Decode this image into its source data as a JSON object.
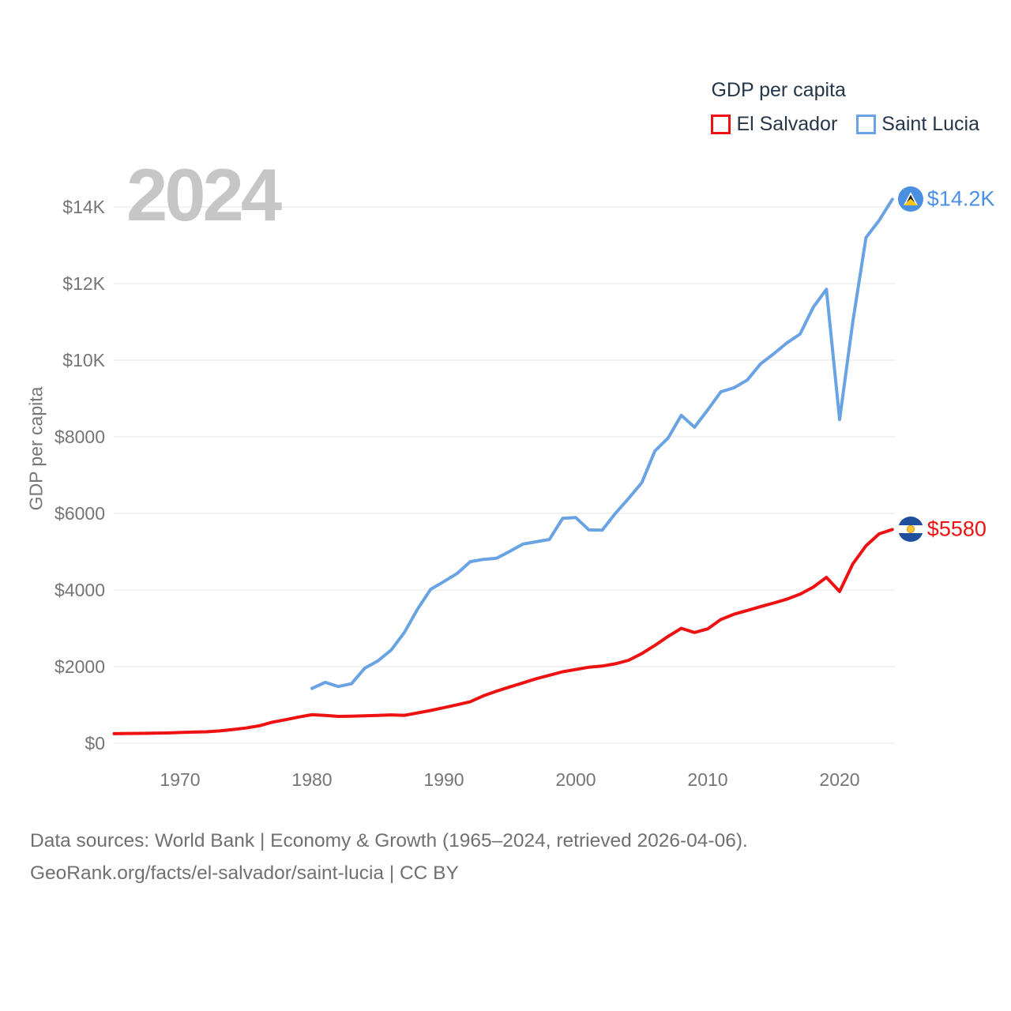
{
  "watermark_year": "2024",
  "legend": {
    "title": "GDP per capita",
    "items": [
      {
        "id": "el-salvador",
        "label": "El Salvador",
        "color": "#ee1111"
      },
      {
        "id": "saint-lucia",
        "label": "Saint Lucia",
        "color": "#69a3e3"
      }
    ]
  },
  "footer": {
    "line1": "Data sources: World Bank | Economy & Growth (1965–2024, retrieved 2026-04-06).",
    "line2": "GeoRank.org/facts/el-salvador/saint-lucia | CC BY"
  },
  "colors": {
    "el_salvador_line": "#ee1111",
    "saint_lucia_line": "#69a3e3",
    "el_salvador_end_label": "#ee1111",
    "saint_lucia_end_label": "#4a90e2",
    "gridline": "#ededed",
    "tick_text": "#757575",
    "legend_text": "#263649",
    "watermark": "#c6c6c6"
  },
  "chart_data": {
    "type": "line",
    "title": "GDP per capita",
    "xlabel": "",
    "ylabel": "GDP per capita",
    "xlim": [
      1965,
      2024
    ],
    "ylim": [
      0,
      14500
    ],
    "grid": "horizontal",
    "legend_position": "top-right",
    "x_ticks": [
      {
        "label": "1970",
        "value": 1970
      },
      {
        "label": "1980",
        "value": 1980
      },
      {
        "label": "1990",
        "value": 1990
      },
      {
        "label": "2000",
        "value": 2000
      },
      {
        "label": "2010",
        "value": 2010
      },
      {
        "label": "2020",
        "value": 2020
      }
    ],
    "y_ticks": [
      {
        "label": "$0",
        "value": 0
      },
      {
        "label": "$2000",
        "value": 2000
      },
      {
        "label": "$4000",
        "value": 4000
      },
      {
        "label": "$6000",
        "value": 6000
      },
      {
        "label": "$8000",
        "value": 8000
      },
      {
        "label": "$10K",
        "value": 10000
      },
      {
        "label": "$12K",
        "value": 12000
      },
      {
        "label": "$14K",
        "value": 14000
      }
    ],
    "series": [
      {
        "id": "el-salvador",
        "name": "El Salvador",
        "color": "#ee1111",
        "end_label": "$5580",
        "points": [
          [
            1965,
            250
          ],
          [
            1966,
            255
          ],
          [
            1967,
            258
          ],
          [
            1968,
            262
          ],
          [
            1969,
            268
          ],
          [
            1970,
            280
          ],
          [
            1971,
            290
          ],
          [
            1972,
            300
          ],
          [
            1973,
            322
          ],
          [
            1974,
            358
          ],
          [
            1975,
            398
          ],
          [
            1976,
            455
          ],
          [
            1977,
            550
          ],
          [
            1978,
            615
          ],
          [
            1979,
            685
          ],
          [
            1980,
            745
          ],
          [
            1981,
            728
          ],
          [
            1982,
            700
          ],
          [
            1983,
            705
          ],
          [
            1984,
            715
          ],
          [
            1985,
            725
          ],
          [
            1986,
            740
          ],
          [
            1987,
            728
          ],
          [
            1988,
            792
          ],
          [
            1989,
            855
          ],
          [
            1990,
            930
          ],
          [
            1991,
            1005
          ],
          [
            1992,
            1085
          ],
          [
            1993,
            1240
          ],
          [
            1994,
            1360
          ],
          [
            1995,
            1470
          ],
          [
            1996,
            1575
          ],
          [
            1997,
            1685
          ],
          [
            1998,
            1775
          ],
          [
            1999,
            1865
          ],
          [
            2000,
            1925
          ],
          [
            2001,
            1985
          ],
          [
            2002,
            2015
          ],
          [
            2003,
            2075
          ],
          [
            2004,
            2165
          ],
          [
            2005,
            2340
          ],
          [
            2006,
            2555
          ],
          [
            2007,
            2790
          ],
          [
            2008,
            3000
          ],
          [
            2009,
            2890
          ],
          [
            2010,
            2985
          ],
          [
            2011,
            3230
          ],
          [
            2012,
            3370
          ],
          [
            2013,
            3465
          ],
          [
            2014,
            3565
          ],
          [
            2015,
            3660
          ],
          [
            2016,
            3760
          ],
          [
            2017,
            3890
          ],
          [
            2018,
            4075
          ],
          [
            2019,
            4330
          ],
          [
            2020,
            3960
          ],
          [
            2021,
            4680
          ],
          [
            2022,
            5155
          ],
          [
            2023,
            5465
          ],
          [
            2024,
            5580
          ]
        ]
      },
      {
        "id": "saint-lucia",
        "name": "Saint Lucia",
        "color": "#69a3e3",
        "end_label": "$14.2K",
        "points": [
          [
            1980,
            1430
          ],
          [
            1981,
            1590
          ],
          [
            1982,
            1480
          ],
          [
            1983,
            1555
          ],
          [
            1984,
            1960
          ],
          [
            1985,
            2150
          ],
          [
            1986,
            2430
          ],
          [
            1987,
            2890
          ],
          [
            1988,
            3500
          ],
          [
            1989,
            4020
          ],
          [
            1990,
            4220
          ],
          [
            1991,
            4430
          ],
          [
            1992,
            4740
          ],
          [
            1993,
            4800
          ],
          [
            1994,
            4830
          ],
          [
            1995,
            5010
          ],
          [
            1996,
            5200
          ],
          [
            1997,
            5260
          ],
          [
            1998,
            5320
          ],
          [
            1999,
            5870
          ],
          [
            2000,
            5890
          ],
          [
            2001,
            5570
          ],
          [
            2002,
            5560
          ],
          [
            2003,
            6000
          ],
          [
            2004,
            6390
          ],
          [
            2005,
            6800
          ],
          [
            2006,
            7630
          ],
          [
            2007,
            7970
          ],
          [
            2008,
            8560
          ],
          [
            2009,
            8250
          ],
          [
            2010,
            8700
          ],
          [
            2011,
            9175
          ],
          [
            2012,
            9280
          ],
          [
            2013,
            9480
          ],
          [
            2014,
            9900
          ],
          [
            2015,
            10165
          ],
          [
            2016,
            10450
          ],
          [
            2017,
            10680
          ],
          [
            2018,
            11380
          ],
          [
            2019,
            11850
          ],
          [
            2020,
            8450
          ],
          [
            2021,
            11000
          ],
          [
            2022,
            13200
          ],
          [
            2023,
            13650
          ],
          [
            2024,
            14200
          ]
        ]
      }
    ]
  }
}
